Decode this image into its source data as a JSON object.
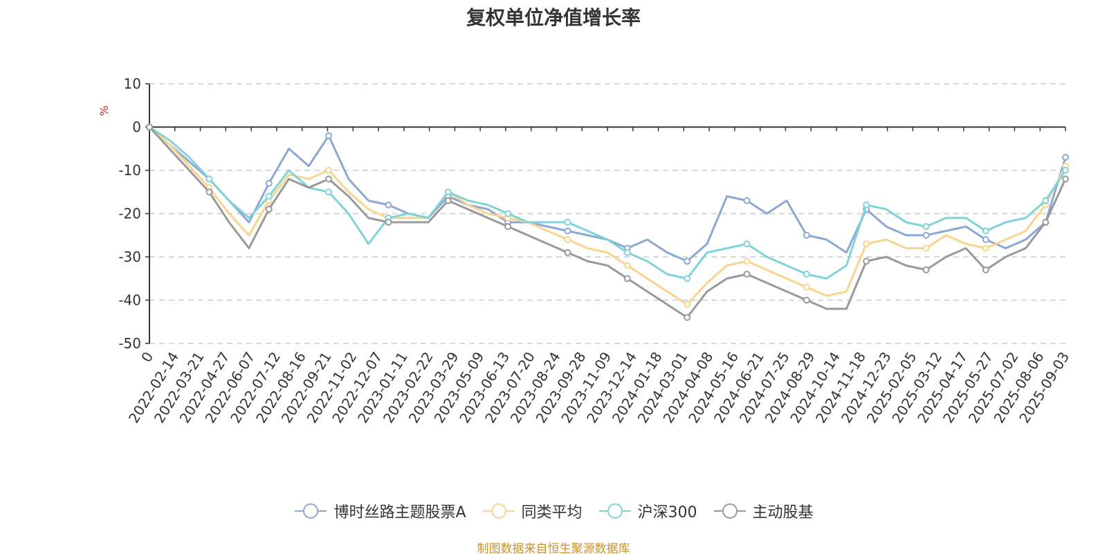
{
  "title": "复权单位净值增长率",
  "source_note": "制图数据来自恒生聚源数据库",
  "chart_data": {
    "type": "line",
    "title": "复权单位净值增长率",
    "ylabel": "%",
    "ylim": [
      -50,
      10
    ],
    "yticks": [
      10,
      0,
      -10,
      -20,
      -30,
      -40,
      -50
    ],
    "grid": true,
    "legend_position": "bottom",
    "x_tick_labels": [
      "0",
      "2022-02-14",
      "2022-03-21",
      "2022-04-27",
      "2022-06-07",
      "2022-07-12",
      "2022-08-16",
      "2022-09-21",
      "2022-11-02",
      "2022-12-07",
      "2023-01-11",
      "2023-02-22",
      "2023-03-29",
      "2023-05-09",
      "2023-06-13",
      "2023-07-20",
      "2023-08-24",
      "2023-09-28",
      "2023-11-09",
      "2023-12-14",
      "2024-01-18",
      "2024-03-01",
      "2024-04-08",
      "2024-05-16",
      "2024-06-21",
      "2024-07-25",
      "2024-08-29",
      "2024-10-14",
      "2024-11-18",
      "2024-12-23",
      "2025-02-05",
      "2025-03-12",
      "2025-04-17",
      "2025-05-27",
      "2025-07-02",
      "2025-08-06",
      "2025-09-03"
    ],
    "series": [
      {
        "name": "博时丝路主题股票A",
        "color": "#8ba7d6",
        "values": [
          0,
          -4,
          -8,
          -12,
          -17,
          -22,
          -13,
          -5,
          -9,
          -2,
          -12,
          -17,
          -18,
          -20,
          -21,
          -16,
          -18,
          -19,
          -22,
          -22,
          -23,
          -24,
          -25,
          -26,
          -28,
          -26,
          -29,
          -31,
          -27,
          -16,
          -17,
          -20,
          -17,
          -25,
          -26,
          -29,
          -19,
          -23,
          -25,
          -25,
          -24,
          -23,
          -26,
          -28,
          -26,
          -22,
          -7
        ]
      },
      {
        "name": "同类平均",
        "color": "#f9d48c",
        "values": [
          0,
          -4,
          -9,
          -14,
          -20,
          -25,
          -17,
          -11,
          -12,
          -10,
          -15,
          -19,
          -21,
          -21,
          -21,
          -15,
          -18,
          -20,
          -21,
          -22,
          -24,
          -26,
          -28,
          -29,
          -32,
          -35,
          -38,
          -41,
          -36,
          -32,
          -31,
          -33,
          -35,
          -37,
          -39,
          -38,
          -27,
          -26,
          -28,
          -28,
          -25,
          -27,
          -28,
          -26,
          -24,
          -18,
          -9
        ]
      },
      {
        "name": "沪深300",
        "color": "#7fd3d8",
        "values": [
          0,
          -3,
          -7,
          -12,
          -17,
          -21,
          -16,
          -10,
          -14,
          -15,
          -20,
          -27,
          -21,
          -20,
          -21,
          -15,
          -17,
          -18,
          -20,
          -22,
          -22,
          -22,
          -24,
          -26,
          -29,
          -31,
          -34,
          -35,
          -29,
          -28,
          -27,
          -30,
          -32,
          -34,
          -35,
          -32,
          -18,
          -19,
          -22,
          -23,
          -21,
          -21,
          -24,
          -22,
          -21,
          -17,
          -10
        ]
      },
      {
        "name": "主动股基",
        "color": "#999999",
        "values": [
          0,
          -5,
          -10,
          -15,
          -22,
          -28,
          -19,
          -12,
          -14,
          -12,
          -16,
          -21,
          -22,
          -22,
          -22,
          -17,
          -19,
          -21,
          -23,
          -25,
          -27,
          -29,
          -31,
          -32,
          -35,
          -38,
          -41,
          -44,
          -38,
          -35,
          -34,
          -36,
          -38,
          -40,
          -42,
          -42,
          -31,
          -30,
          -32,
          -33,
          -30,
          -28,
          -33,
          -30,
          -28,
          -22,
          -12
        ]
      }
    ]
  }
}
